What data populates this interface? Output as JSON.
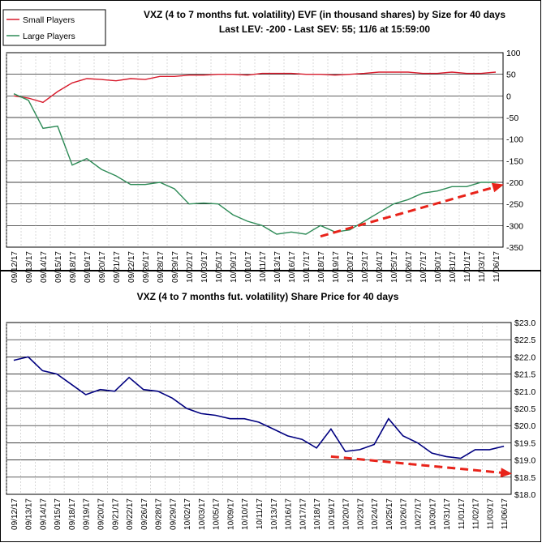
{
  "colors": {
    "small": "#d81b2c",
    "large": "#2e8b57",
    "price": "#000080",
    "trend": "#e8231a",
    "grid": "#000000"
  },
  "chart_data": [
    {
      "type": "line",
      "title": "VXZ (4 to 7 months fut. volatility) EVF (in thousand shares) by Size for 40 days",
      "subtitle": "Last LEV: -200 - Last SEV: 55; 11/6 at 15:59:00",
      "legend_position": "top-left",
      "grid": true,
      "ylim": [
        -350,
        100
      ],
      "yticks": [
        100,
        50,
        0,
        -50,
        -100,
        -150,
        -200,
        -250,
        -300,
        -350
      ],
      "categories": [
        "09/12/17",
        "09/13/17",
        "09/14/17",
        "09/15/17",
        "09/18/17",
        "09/19/17",
        "09/20/17",
        "09/21/17",
        "09/22/17",
        "09/26/17",
        "09/28/17",
        "09/29/17",
        "10/02/17",
        "10/03/17",
        "10/05/17",
        "10/09/17",
        "10/10/17",
        "10/11/17",
        "10/13/17",
        "10/16/17",
        "10/17/17",
        "10/18/17",
        "10/19/17",
        "10/20/17",
        "10/23/17",
        "10/24/17",
        "10/25/17",
        "10/26/17",
        "10/27/17",
        "10/30/17",
        "10/31/17",
        "11/01/17",
        "11/03/17",
        "11/06/17"
      ],
      "series": [
        {
          "name": "Small Players",
          "values": [
            0,
            -5,
            -15,
            10,
            30,
            40,
            38,
            35,
            40,
            38,
            45,
            45,
            48,
            48,
            50,
            50,
            48,
            52,
            52,
            52,
            50,
            50,
            48,
            50,
            52,
            55,
            55,
            55,
            52,
            52,
            55,
            52,
            52,
            55
          ]
        },
        {
          "name": "Large Players",
          "values": [
            5,
            -10,
            -75,
            -70,
            -160,
            -145,
            -170,
            -185,
            -205,
            -205,
            -200,
            -215,
            -250,
            -248,
            -250,
            -275,
            -290,
            -300,
            -320,
            -315,
            -320,
            -300,
            -315,
            -310,
            -290,
            -270,
            -250,
            -240,
            -225,
            -220,
            -210,
            -210,
            -200,
            -200
          ]
        }
      ],
      "trend_arrow": {
        "from": {
          "x": "10/18/17",
          "y": -325
        },
        "to": {
          "x": "11/06/17",
          "y": -205
        }
      }
    },
    {
      "type": "line",
      "title": "VXZ (4 to 7 months fut. volatility) Share Price for 40 days",
      "grid": true,
      "ylim": [
        18.0,
        23.0
      ],
      "yticks": [
        "$23.0",
        "$22.5",
        "$22.0",
        "$21.5",
        "$21.0",
        "$20.5",
        "$20.0",
        "$19.5",
        "$19.0",
        "$18.5",
        "$18.0"
      ],
      "categories": [
        "09/12/17",
        "09/13/17",
        "09/14/17",
        "09/15/17",
        "09/18/17",
        "09/19/17",
        "09/20/17",
        "09/21/17",
        "09/22/17",
        "09/26/17",
        "09/28/17",
        "09/29/17",
        "10/02/17",
        "10/03/17",
        "10/05/17",
        "10/09/17",
        "10/10/17",
        "10/11/17",
        "10/13/17",
        "10/16/17",
        "10/17/17",
        "10/18/17",
        "10/19/17",
        "10/20/17",
        "10/23/17",
        "10/24/17",
        "10/25/17",
        "10/26/17",
        "10/27/17",
        "10/30/17",
        "10/31/17",
        "11/01/17",
        "11/02/17",
        "11/03/17",
        "11/06/17"
      ],
      "series": [
        {
          "name": "",
          "values": [
            21.9,
            22.0,
            21.6,
            21.5,
            21.2,
            20.9,
            21.05,
            21.0,
            21.4,
            21.05,
            21.0,
            20.8,
            20.5,
            20.35,
            20.3,
            20.2,
            20.2,
            20.1,
            19.9,
            19.7,
            19.6,
            19.35,
            19.9,
            19.25,
            19.3,
            19.45,
            20.2,
            19.7,
            19.5,
            19.2,
            19.1,
            19.05,
            19.3,
            19.3,
            19.4
          ]
        }
      ],
      "trend_arrow": {
        "from": {
          "x": "10/19/17",
          "y": 19.1
        },
        "to": {
          "x": "11/06/17",
          "y": 18.6
        }
      }
    }
  ]
}
